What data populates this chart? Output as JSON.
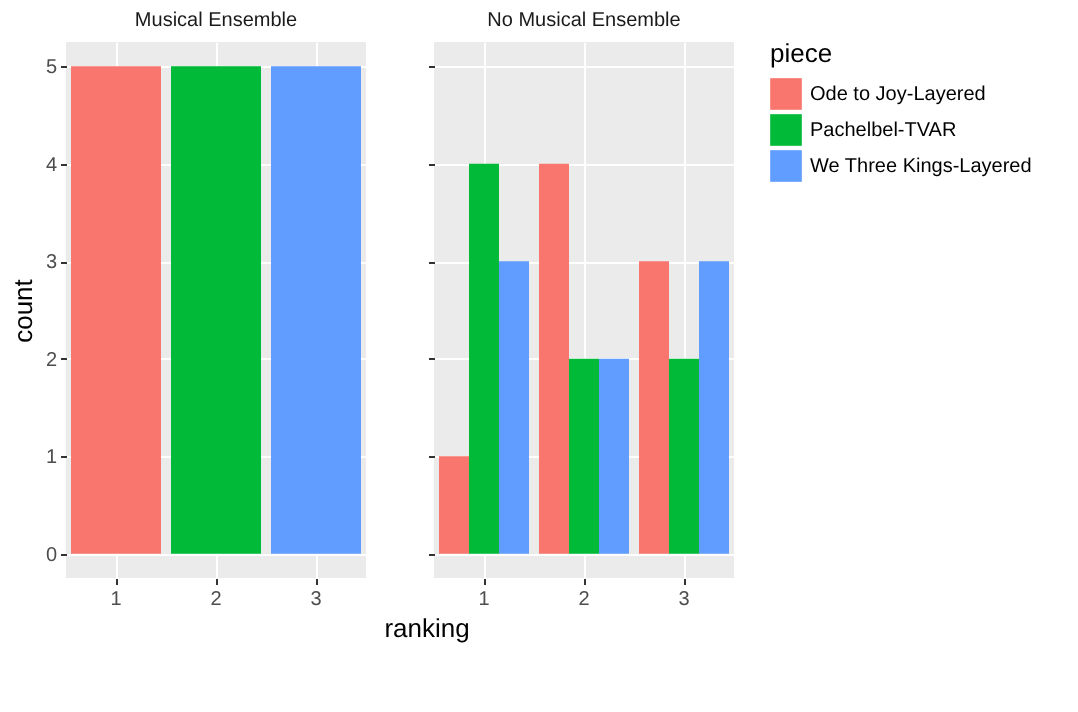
{
  "chart_data": [
    {
      "type": "bar",
      "title": "Musical Ensemble",
      "ylabel": "count",
      "legend_title": "piece",
      "categories": [
        "1",
        "2",
        "3"
      ],
      "ylim": [
        -0.25,
        5.25
      ],
      "yticks": [
        0,
        1,
        2,
        3,
        4,
        5
      ],
      "grid": true,
      "legend": "right",
      "series": [
        {
          "name": "Ode to Joy-Layered",
          "color": "#f8766d",
          "values": [
            5,
            null,
            null
          ]
        },
        {
          "name": "Pachelbel-TVAR",
          "color": "#00ba38",
          "values": [
            null,
            5,
            null
          ]
        },
        {
          "name": "We Three Kings-Layered",
          "color": "#619cff",
          "values": [
            null,
            null,
            5
          ]
        }
      ]
    },
    {
      "type": "bar",
      "title": "No Musical Ensemble",
      "xlabel": "ranking",
      "categories": [
        "1",
        "2",
        "3"
      ],
      "ylim": [
        -0.25,
        5.25
      ],
      "yticks": [
        0,
        1,
        2,
        3,
        4,
        5
      ],
      "grid": true,
      "tick_labels": "x",
      "legend": "right",
      "series": [
        {
          "name": "Ode to Joy-Layered",
          "color": "#f8766d",
          "values": [
            1,
            4,
            3
          ]
        },
        {
          "name": "Pachelbel-TVAR",
          "color": "#00ba38",
          "values": [
            4,
            2,
            2
          ]
        },
        {
          "name": "We Three Kings-Layered",
          "color": "#619cff",
          "values": [
            3,
            2,
            3
          ]
        }
      ]
    }
  ]
}
